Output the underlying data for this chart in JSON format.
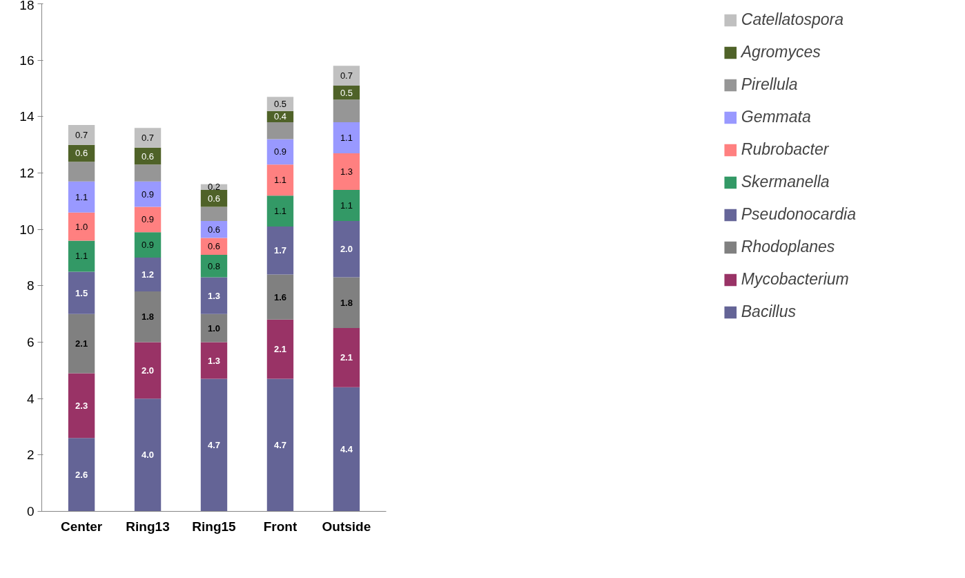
{
  "chart_data": {
    "type": "bar",
    "stacked": true,
    "categories": [
      "Center",
      "Ring13",
      "Ring15",
      "Front",
      "Outside"
    ],
    "ylim": [
      0,
      18
    ],
    "yticks": [
      0,
      2,
      4,
      6,
      8,
      10,
      12,
      14,
      16,
      18
    ],
    "grid": false,
    "legend": "right",
    "series": [
      {
        "name": "Bacillus",
        "color": "#646496",
        "values": [
          2.6,
          4.0,
          4.7,
          4.7,
          4.4
        ],
        "value_labels": [
          "2.6",
          "4.0",
          "4.7",
          "4.7",
          "4.4"
        ]
      },
      {
        "name": "Mycobacterium",
        "color": "#993366",
        "values": [
          2.3,
          2.0,
          1.3,
          2.1,
          2.1
        ],
        "value_labels": [
          "2.3",
          "2.0",
          "1.3",
          "2.1",
          "2.1"
        ]
      },
      {
        "name": "Rhodoplanes",
        "color": "#808080",
        "values": [
          2.1,
          1.8,
          1.0,
          1.6,
          1.8
        ],
        "value_labels": [
          "2.1",
          "1.8",
          "1.0",
          "1.6",
          "1.8"
        ]
      },
      {
        "name": "Pseudonocardia",
        "color": "#666699",
        "values": [
          1.5,
          1.2,
          1.3,
          1.7,
          2.0
        ],
        "value_labels": [
          "1.5",
          "1.2",
          "1.3",
          "1.7",
          "2.0"
        ]
      },
      {
        "name": "Skermanella",
        "color": "#339966",
        "values": [
          1.1,
          0.9,
          0.8,
          1.1,
          1.1
        ],
        "value_labels": [
          "1.1",
          "0.9",
          "0.8",
          "1.1",
          "1.1"
        ]
      },
      {
        "name": "Rubrobacter",
        "color": "#ff8080",
        "values": [
          1.0,
          0.9,
          0.6,
          1.1,
          1.3
        ],
        "value_labels": [
          "1.0",
          "0.9",
          "0.6",
          "1.1",
          "1.3"
        ]
      },
      {
        "name": "Gemmata",
        "color": "#9999ff",
        "values": [
          1.1,
          0.9,
          0.6,
          0.9,
          1.1
        ],
        "value_labels": [
          "1.1",
          "0.9",
          "0.6",
          "0.9",
          "1.1"
        ]
      },
      {
        "name": "Pirellula",
        "color": "#969696",
        "values": [
          0.7,
          0.6,
          0.5,
          0.6,
          0.8
        ],
        "value_labels": [
          null,
          null,
          null,
          null,
          null
        ]
      },
      {
        "name": "Agromyces",
        "color": "#4f6228",
        "values": [
          0.6,
          0.6,
          0.6,
          0.4,
          0.5
        ],
        "value_labels": [
          "0.6",
          "0.6",
          "0.6",
          "0.4",
          "0.5"
        ]
      },
      {
        "name": "Catellatospora",
        "color": "#c0c0c0",
        "values": [
          0.7,
          0.7,
          0.2,
          0.5,
          0.7
        ],
        "value_labels": [
          "0.7",
          "0.7",
          "0.2",
          "0.5",
          "0.7"
        ]
      }
    ]
  }
}
